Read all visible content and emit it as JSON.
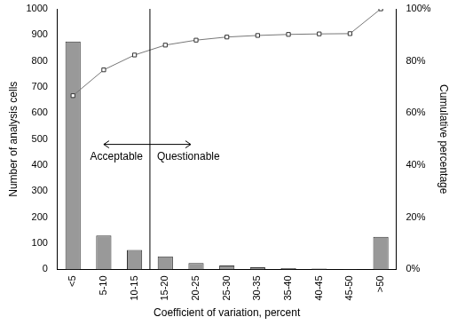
{
  "chart_data": {
    "type": "bar",
    "x_label": "Coefficient of variation, percent",
    "y_label": "Number of analysis cells",
    "y2_label": "Cumulative percentage",
    "categories": [
      "<5",
      "5-10",
      "10-15",
      "15-20",
      "20-25",
      "25-30",
      "30-35",
      "35-40",
      "40-45",
      "45-50",
      ">50"
    ],
    "series": [
      {
        "type": "bar",
        "color": "#999999",
        "values": [
          875,
          130,
          75,
          50,
          25,
          15,
          8,
          5,
          3,
          1,
          125
        ]
      },
      {
        "type": "line",
        "axis": "y2",
        "color": "#777777",
        "marker": "square",
        "values": [
          66.7,
          76.6,
          82.3,
          86.1,
          88.0,
          89.2,
          89.8,
          90.2,
          90.4,
          90.5,
          100
        ]
      }
    ],
    "ylim": [
      0,
      1000
    ],
    "yticks": [
      0,
      100,
      200,
      300,
      400,
      500,
      600,
      700,
      800,
      900,
      1000
    ],
    "y2lim": [
      0,
      100
    ],
    "y2ticks": [
      {
        "value": 0,
        "label": "0%"
      },
      {
        "value": 20,
        "label": "20%"
      },
      {
        "value": 40,
        "label": "40%"
      },
      {
        "value": 60,
        "label": "60%"
      },
      {
        "value": 80,
        "label": "80%"
      },
      {
        "value": 100,
        "label": "100%"
      }
    ],
    "annotations": [
      "Acceptable",
      "Questionable"
    ],
    "grid": false
  }
}
